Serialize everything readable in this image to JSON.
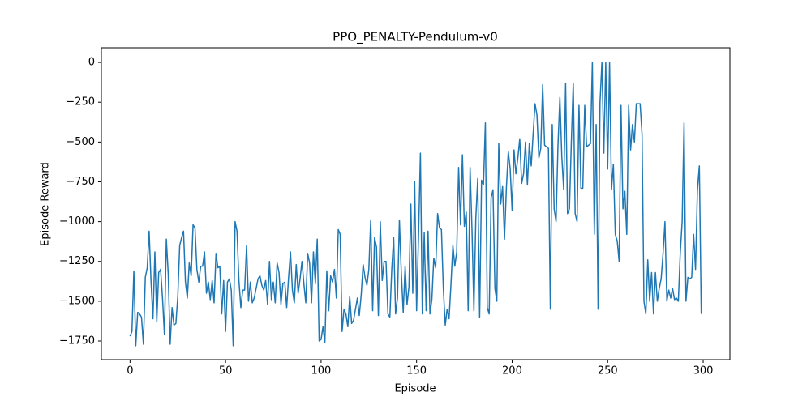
{
  "chart_data": {
    "type": "line",
    "title": "PPO_PENALTY-Pendulum-v0",
    "x_label": "Episode",
    "y_label": "Episode Reward",
    "color": "#1f77b4",
    "x": [
      0,
      1,
      2,
      3,
      4,
      5,
      6,
      7,
      8,
      9,
      10,
      11,
      12,
      13,
      14,
      15,
      16,
      17,
      18,
      19,
      20,
      21,
      22,
      23,
      24,
      25,
      26,
      27,
      28,
      29,
      30,
      31,
      32,
      33,
      34,
      35,
      36,
      37,
      38,
      39,
      40,
      41,
      42,
      43,
      44,
      45,
      46,
      47,
      48,
      49,
      50,
      51,
      52,
      53,
      54,
      55,
      56,
      57,
      58,
      59,
      60,
      61,
      62,
      63,
      64,
      65,
      66,
      67,
      68,
      69,
      70,
      71,
      72,
      73,
      74,
      75,
      76,
      77,
      78,
      79,
      80,
      81,
      82,
      83,
      84,
      85,
      86,
      87,
      88,
      89,
      90,
      91,
      92,
      93,
      94,
      95,
      96,
      97,
      98,
      99,
      100,
      101,
      102,
      103,
      104,
      105,
      106,
      107,
      108,
      109,
      110,
      111,
      112,
      113,
      114,
      115,
      116,
      117,
      118,
      119,
      120,
      121,
      122,
      123,
      124,
      125,
      126,
      127,
      128,
      129,
      130,
      131,
      132,
      133,
      134,
      135,
      136,
      137,
      138,
      139,
      140,
      141,
      142,
      143,
      144,
      145,
      146,
      147,
      148,
      149,
      150,
      151,
      152,
      153,
      154,
      155,
      156,
      157,
      158,
      159,
      160,
      161,
      162,
      163,
      164,
      165,
      166,
      167,
      168,
      169,
      170,
      171,
      172,
      173,
      174,
      175,
      176,
      177,
      178,
      179,
      180,
      181,
      182,
      183,
      184,
      185,
      186,
      187,
      188,
      189,
      190,
      191,
      192,
      193,
      194,
      195,
      196,
      197,
      198,
      199,
      200,
      201,
      202,
      203,
      204,
      205,
      206,
      207,
      208,
      209,
      210,
      211,
      212,
      213,
      214,
      215,
      216,
      217,
      218,
      219,
      220,
      221,
      222,
      223,
      224,
      225,
      226,
      227,
      228,
      229,
      230,
      231,
      232,
      233,
      234,
      235,
      236,
      237,
      238,
      239,
      240,
      241,
      242,
      243,
      244,
      245,
      246,
      247,
      248,
      249,
      250,
      251,
      252,
      253,
      254,
      255,
      256,
      257,
      258,
      259,
      260,
      261,
      262,
      263,
      264,
      265,
      266,
      267,
      268,
      269,
      270,
      271,
      272,
      273,
      274,
      275,
      276,
      277,
      278,
      279,
      280,
      281,
      282,
      283,
      284,
      285,
      286,
      287,
      288,
      289,
      290,
      291,
      292,
      293,
      294,
      295,
      296,
      297,
      298,
      299
    ],
    "values": [
      -1720,
      -1690,
      -1310,
      -1780,
      -1570,
      -1580,
      -1600,
      -1770,
      -1350,
      -1290,
      -1060,
      -1380,
      -1610,
      -1190,
      -1630,
      -1320,
      -1300,
      -1480,
      -1710,
      -1110,
      -1330,
      -1770,
      -1540,
      -1650,
      -1640,
      -1470,
      -1150,
      -1100,
      -1060,
      -1380,
      -1480,
      -1260,
      -1340,
      -1020,
      -1040,
      -1300,
      -1380,
      -1280,
      -1280,
      -1190,
      -1450,
      -1380,
      -1490,
      -1370,
      -1510,
      -1200,
      -1290,
      -1280,
      -1580,
      -1370,
      -1690,
      -1380,
      -1360,
      -1430,
      -1780,
      -1000,
      -1060,
      -1370,
      -1540,
      -1430,
      -1430,
      -1150,
      -1500,
      -1380,
      -1510,
      -1480,
      -1420,
      -1360,
      -1340,
      -1400,
      -1430,
      -1370,
      -1520,
      -1250,
      -1490,
      -1380,
      -1510,
      -1260,
      -1320,
      -1520,
      -1390,
      -1380,
      -1540,
      -1350,
      -1190,
      -1430,
      -1510,
      -1270,
      -1450,
      -1360,
      -1250,
      -1390,
      -1510,
      -1200,
      -1260,
      -1510,
      -1190,
      -1390,
      -1110,
      -1750,
      -1740,
      -1660,
      -1760,
      -1310,
      -1560,
      -1340,
      -1380,
      -1300,
      -1480,
      -1050,
      -1080,
      -1690,
      -1550,
      -1580,
      -1660,
      -1470,
      -1640,
      -1620,
      -1550,
      -1480,
      -1590,
      -1460,
      -1270,
      -1350,
      -1400,
      -1300,
      -990,
      -1560,
      -1100,
      -1160,
      -1590,
      -1000,
      -1370,
      -1250,
      -1250,
      -1580,
      -1600,
      -1300,
      -1100,
      -1580,
      -1480,
      -990,
      -1320,
      -1570,
      -1280,
      -1520,
      -1410,
      -890,
      -1450,
      -750,
      -1560,
      -1100,
      -570,
      -1580,
      -1070,
      -1560,
      -1060,
      -1580,
      -1490,
      -1230,
      -1290,
      -950,
      -1040,
      -1050,
      -1420,
      -1650,
      -1550,
      -1610,
      -1390,
      -1150,
      -1280,
      -1190,
      -660,
      -1020,
      -580,
      -1030,
      -940,
      -1560,
      -660,
      -1050,
      -1560,
      -980,
      -730,
      -1600,
      -740,
      -770,
      -380,
      -1540,
      -1580,
      -850,
      -800,
      -1420,
      -1500,
      -510,
      -890,
      -780,
      -1110,
      -790,
      -560,
      -670,
      -930,
      -550,
      -700,
      -600,
      -480,
      -760,
      -700,
      -500,
      -770,
      -510,
      -650,
      -450,
      -260,
      -330,
      -600,
      -540,
      -140,
      -520,
      -530,
      -540,
      -1550,
      -390,
      -920,
      -1000,
      -520,
      -220,
      -590,
      -800,
      -130,
      -950,
      -920,
      -500,
      -130,
      -950,
      -1000,
      -270,
      -790,
      -790,
      -270,
      -530,
      -520,
      -510,
      0,
      -1080,
      -390,
      -1550,
      -250,
      0,
      -570,
      0,
      -670,
      0,
      -800,
      -640,
      -1080,
      -1120,
      -1250,
      -270,
      -920,
      -810,
      -1080,
      -270,
      -550,
      -390,
      -500,
      -260,
      -260,
      -260,
      -450,
      -1500,
      -1580,
      -1240,
      -1500,
      -1320,
      -1580,
      -1320,
      -1500,
      -1420,
      -1360,
      -1200,
      -1000,
      -1500,
      -1430,
      -1480,
      -1420,
      -1490,
      -1480,
      -1500,
      -1200,
      -1000,
      -380,
      -1500,
      -1350,
      -1360,
      -1350,
      -1080,
      -1300,
      -800,
      -650,
      -1580
    ],
    "xlim": [
      -15,
      314
    ],
    "ylim": [
      -1867,
      92
    ],
    "xticks": [
      0,
      50,
      100,
      150,
      200,
      250,
      300
    ],
    "yticks": [
      0,
      {
        "value": -250,
        "label": "−250"
      },
      {
        "value": -500,
        "label": "−500"
      },
      {
        "value": -750,
        "label": "−750"
      },
      {
        "value": -1000,
        "label": "−1000"
      },
      {
        "value": -1250,
        "label": "−1250"
      },
      {
        "value": -1500,
        "label": "−1500"
      },
      {
        "value": -1750,
        "label": "−1750"
      }
    ]
  }
}
